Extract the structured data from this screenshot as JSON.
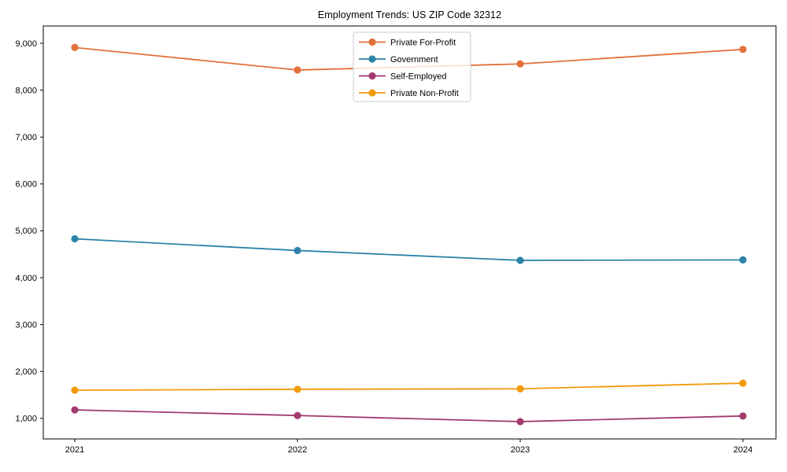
{
  "title": "Employment Trends: US ZIP Code 32312",
  "chart_data": {
    "type": "line",
    "title": "Employment Trends: US ZIP Code 32312",
    "x": [
      2021,
      2022,
      2023,
      2024
    ],
    "x_tick_labels": [
      "2021",
      "2022",
      "2023",
      "2024"
    ],
    "series": [
      {
        "name": "Private For-Profit",
        "color": "#e2713a",
        "values": [
          8910,
          8430,
          8560,
          8870
        ]
      },
      {
        "name": "Government",
        "color": "#2b83a8",
        "values": [
          4830,
          4580,
          4370,
          4380
        ]
      },
      {
        "name": "Self-Employed",
        "color": "#a13a6f",
        "values": [
          1180,
          1060,
          930,
          1050
        ]
      },
      {
        "name": "Private Non-Profit",
        "color": "#f29a0b",
        "values": [
          1600,
          1620,
          1630,
          1750
        ]
      }
    ],
    "xlabel": "",
    "ylabel": "",
    "ylim": [
      560,
      9370
    ],
    "yticks": [
      1000,
      2000,
      3000,
      4000,
      5000,
      6000,
      7000,
      8000,
      9000
    ],
    "ytick_labels": [
      "1,000",
      "2,000",
      "3,000",
      "4,000",
      "5,000",
      "6,000",
      "7,000",
      "8,000",
      "9,000"
    ],
    "grid": false,
    "marker": "o",
    "legend_position": "upper center",
    "axis_color": "#000000",
    "legend_border_color": "#cccccc"
  }
}
